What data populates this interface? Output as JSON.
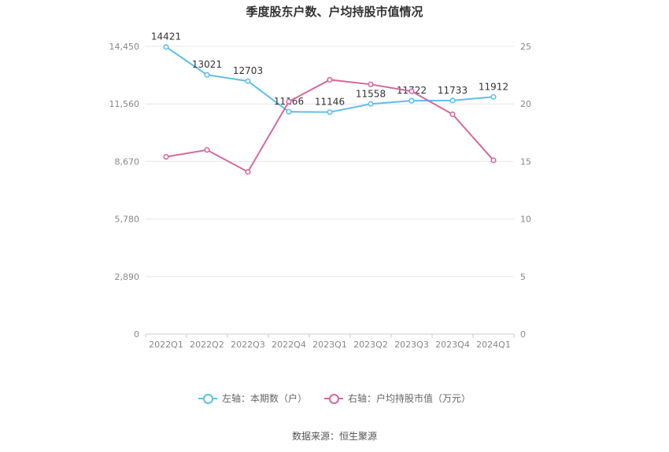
{
  "chart_data": {
    "type": "line",
    "title": "季度股东户数、户均持股市值情况",
    "categories": [
      "2022Q1",
      "2022Q2",
      "2022Q3",
      "2022Q4",
      "2023Q1",
      "2023Q2",
      "2023Q3",
      "2023Q4",
      "2024Q1"
    ],
    "left_axis": {
      "min": 0,
      "max": 14450,
      "ticks": [
        0,
        2890,
        5780,
        8670,
        11560,
        14450
      ],
      "tick_labels": [
        "0",
        "2,890",
        "5,780",
        "8,670",
        "11,560",
        "14,450"
      ]
    },
    "right_axis": {
      "min": 0,
      "max": 25,
      "ticks": [
        0,
        5,
        10,
        15,
        20,
        25
      ],
      "tick_labels": [
        "0",
        "5",
        "10",
        "15",
        "20",
        "25"
      ]
    },
    "grid": true,
    "legend_position": "bottom",
    "series": [
      {
        "name": "左轴：本期数（户）",
        "axis": "left",
        "color": "#5bc0eb",
        "values": [
          14421,
          13021,
          12703,
          11166,
          11146,
          11558,
          11722,
          11733,
          11912
        ],
        "labels": [
          "14421",
          "13021",
          "12703",
          "11166",
          "11146",
          "11558",
          "11722",
          "11733",
          "11912"
        ]
      },
      {
        "name": "右轴：户均持股市值（万元）",
        "axis": "right",
        "color": "#d4689f",
        "values": [
          15.4,
          16.0,
          14.1,
          20.2,
          22.1,
          21.7,
          21.1,
          19.1,
          15.1
        ]
      }
    ],
    "source": "数据来源：恒生聚源"
  }
}
